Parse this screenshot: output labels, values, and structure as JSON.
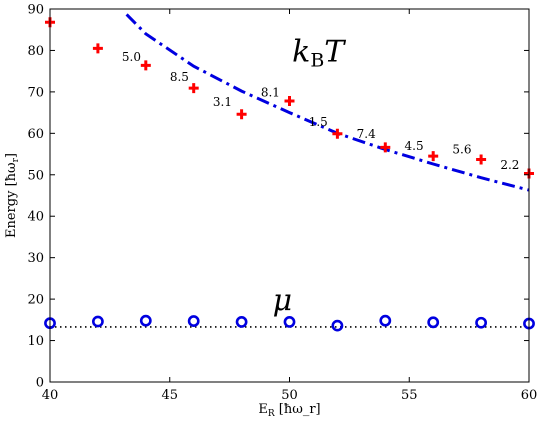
{
  "chart_data": {
    "type": "scatter",
    "xlabel": "E_R [ħω_r]",
    "ylabel": "Energy [ħω_r]",
    "xlim": [
      40,
      60
    ],
    "ylim": [
      0,
      90
    ],
    "xticks": [
      40,
      45,
      50,
      55,
      60
    ],
    "yticks": [
      0,
      10,
      20,
      30,
      40,
      50,
      60,
      70,
      80,
      90
    ],
    "grid": false,
    "series": [
      {
        "marker": "plus",
        "color": "#ff0000",
        "x": [
          40,
          42,
          44,
          46,
          48,
          50,
          52,
          54,
          56,
          58,
          60
        ],
        "y": [
          86.8,
          80.5,
          76.4,
          70.9,
          64.6,
          67.8,
          59.9,
          56.6,
          54.5,
          53.7,
          50.3
        ]
      },
      {
        "line": "dash-dot",
        "color": "#0000e0",
        "x": [
          43.2,
          44,
          46,
          48,
          50,
          52,
          54,
          56,
          58,
          60
        ],
        "y": [
          88.7,
          84.0,
          76.2,
          70.2,
          65.0,
          60.0,
          56.1,
          52.6,
          49.3,
          46.3
        ]
      },
      {
        "marker": "circle-open",
        "color": "#0000e0",
        "x": [
          40,
          42,
          44,
          46,
          48,
          50,
          52,
          54,
          56,
          58,
          60
        ],
        "y": [
          14.2,
          14.6,
          14.8,
          14.7,
          14.5,
          14.5,
          13.6,
          14.8,
          14.4,
          14.3,
          14.1
        ]
      },
      {
        "line": "dotted",
        "color": "#000000",
        "x": [
          40,
          60
        ],
        "y": [
          13.3,
          13.3
        ]
      }
    ],
    "annotations": [
      {
        "text": "5.0",
        "x": 43.8,
        "y": 77.4
      },
      {
        "text": "8.5",
        "x": 45.8,
        "y": 72.6
      },
      {
        "text": "3.1",
        "x": 47.6,
        "y": 66.6
      },
      {
        "text": "8.1",
        "x": 49.6,
        "y": 68.9
      },
      {
        "text": "1.5",
        "x": 51.6,
        "y": 61.8
      },
      {
        "text": "7.4",
        "x": 53.6,
        "y": 58.9
      },
      {
        "text": "4.5",
        "x": 55.6,
        "y": 56.0
      },
      {
        "text": "5.6",
        "x": 57.6,
        "y": 55.1
      },
      {
        "text": "2.2",
        "x": 59.6,
        "y": 51.4
      }
    ],
    "labels": [
      {
        "text": "k_B T",
        "x": 51.2,
        "y": 77.3
      },
      {
        "text": "μ",
        "x": 49.7,
        "y": 17.3
      }
    ]
  }
}
